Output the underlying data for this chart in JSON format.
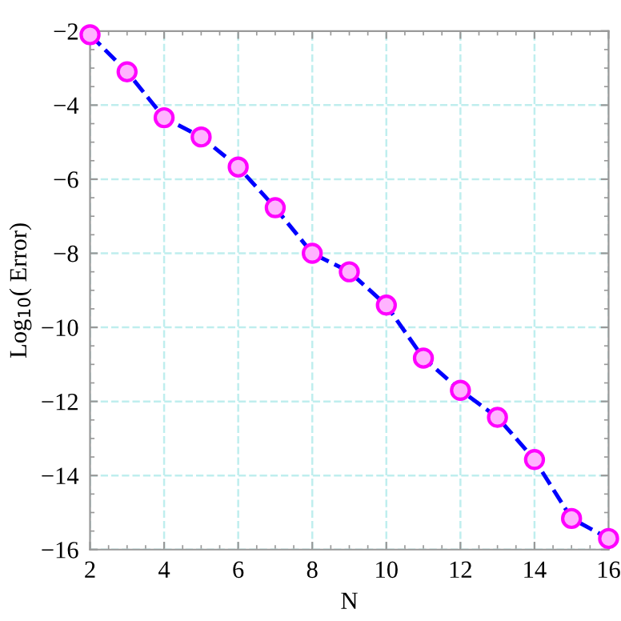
{
  "chart_data": {
    "type": "line",
    "xlabel": "N",
    "ylabel": "Log$_{10}$( Error)",
    "x": [
      2,
      3,
      4,
      5,
      6,
      7,
      8,
      9,
      10,
      11,
      12,
      13,
      14,
      15,
      16
    ],
    "series": [
      {
        "color": "#0000ff",
        "values": [
          -2.1,
          -3.1,
          -4.34,
          -4.86,
          -5.67,
          -6.77,
          -8.0,
          -8.5,
          -9.4,
          -10.83,
          -11.7,
          -12.43,
          -13.57,
          -15.16,
          -15.7
        ]
      }
    ],
    "xlim": [
      2,
      16
    ],
    "xticks": [
      2,
      4,
      6,
      8,
      10,
      12,
      14,
      16
    ],
    "ylim": [
      -16,
      -2
    ],
    "yticks": [
      -16,
      -14,
      -12,
      -10,
      -8,
      -6,
      -4,
      -2
    ],
    "grid": true,
    "marker": "circle",
    "line_style": "dashed"
  }
}
